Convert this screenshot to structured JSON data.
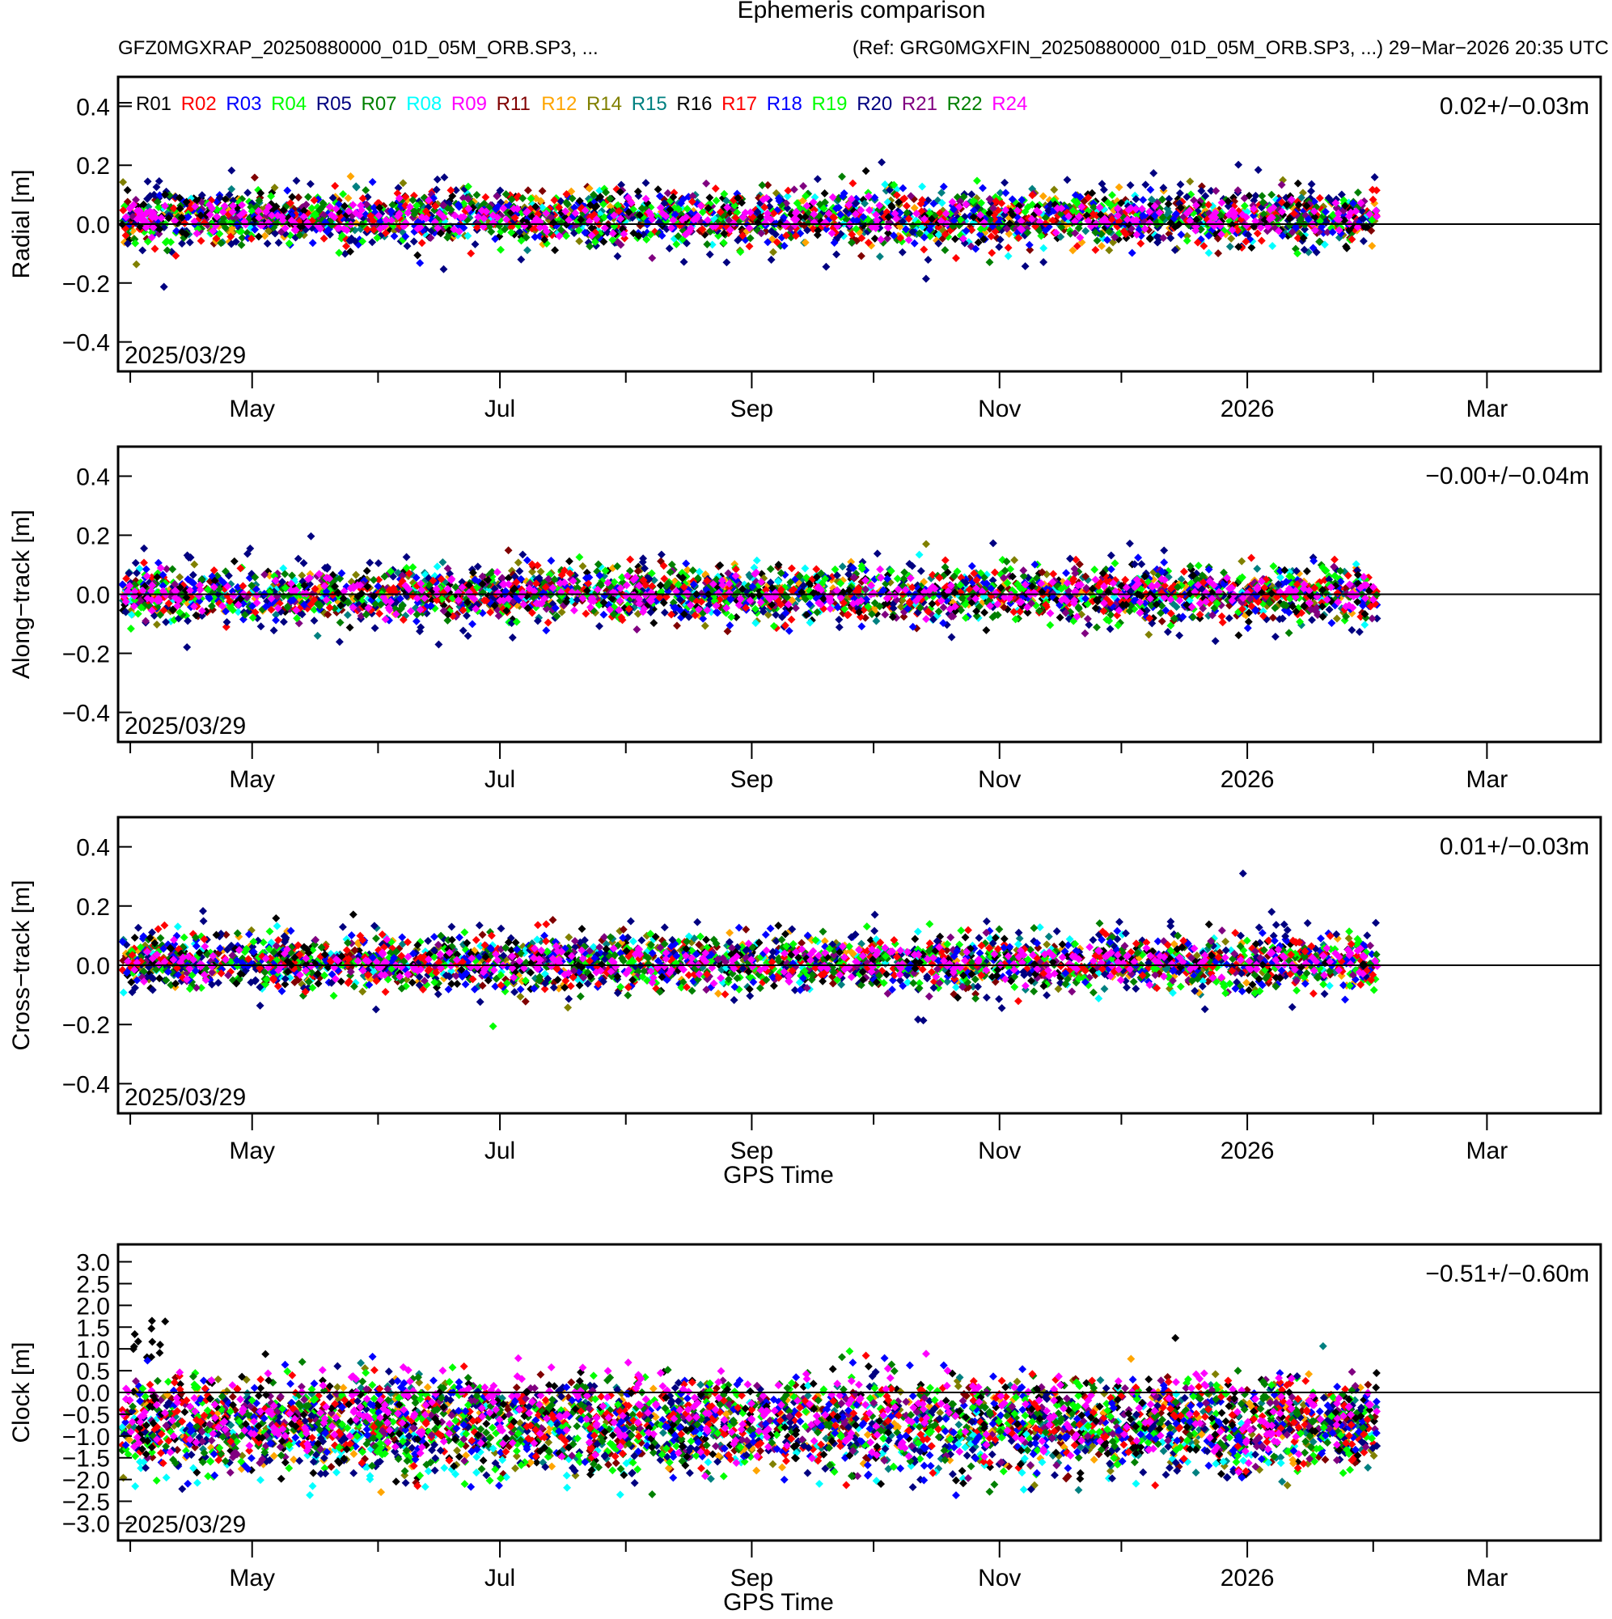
{
  "header": {
    "title": "Ephemeris comparison",
    "subtitle_left": "GFZ0MGXRAP_20250880000_01D_05M_ORB.SP3, ...",
    "subtitle_right": "(Ref: GRG0MGXFIN_20250880000_01D_05M_ORB.SP3, ...) 29−Mar−2026 20:35 UTC"
  },
  "chart_data": [
    {
      "type": "scatter",
      "panel": "radial",
      "ylabel": "Radial [m]",
      "xlabel": "",
      "ylim": [
        -0.5,
        0.5
      ],
      "yticks": [
        -0.4,
        -0.2,
        0.0,
        0.2,
        0.4
      ],
      "ytick_labels": [
        "−0.4",
        "−0.2",
        "0.0",
        "0.2",
        "0.4"
      ],
      "stat": "0.02+/−0.03m",
      "start_label": "2025/03/29",
      "mean": 0.02,
      "std": 0.03
    },
    {
      "type": "scatter",
      "panel": "along-track",
      "ylabel": "Along−track [m]",
      "xlabel": "",
      "ylim": [
        -0.5,
        0.5
      ],
      "yticks": [
        -0.4,
        -0.2,
        0.0,
        0.2,
        0.4
      ],
      "ytick_labels": [
        "−0.4",
        "−0.2",
        "0.0",
        "0.2",
        "0.4"
      ],
      "stat": "−0.00+/−0.04m",
      "start_label": "2025/03/29",
      "mean": 0.0,
      "std": 0.04
    },
    {
      "type": "scatter",
      "panel": "cross-track",
      "ylabel": "Cross−track [m]",
      "xlabel": "GPS Time",
      "ylim": [
        -0.5,
        0.5
      ],
      "yticks": [
        -0.4,
        -0.2,
        0.0,
        0.2,
        0.4
      ],
      "ytick_labels": [
        "−0.4",
        "−0.2",
        "0.0",
        "0.2",
        "0.4"
      ],
      "stat": "0.01+/−0.03m",
      "start_label": "2025/03/29",
      "mean": 0.01,
      "std": 0.03
    },
    {
      "type": "scatter",
      "panel": "clock",
      "ylabel": "Clock [m]",
      "xlabel": "GPS Time",
      "ylim": [
        -3.4,
        3.4
      ],
      "yticks": [
        -3.0,
        -2.5,
        -2.0,
        -1.5,
        -1.0,
        -0.5,
        0.0,
        0.5,
        1.0,
        1.5,
        2.0,
        2.5,
        3.0
      ],
      "ytick_labels": [
        "−3.0",
        "−2.5",
        "−2.0",
        "−1.5",
        "−1.0",
        "−0.5",
        "0.0",
        "0.5",
        "1.0",
        "1.5",
        "2.0",
        "2.5",
        "3.0"
      ],
      "stat": "−0.51+/−0.60m",
      "start_label": "2025/03/29",
      "mean": -0.51,
      "std": 0.6
    }
  ],
  "x_axis": {
    "range_days": [
      0,
      365
    ],
    "data_end_day": 310,
    "month_ticks_days": [
      3,
      33,
      64,
      94,
      125,
      156,
      186,
      217,
      247,
      278,
      309,
      337,
      368
    ],
    "labels": [
      {
        "day": 33,
        "text": "May"
      },
      {
        "day": 94,
        "text": "Jul"
      },
      {
        "day": 156,
        "text": "Sep"
      },
      {
        "day": 217,
        "text": "Nov"
      },
      {
        "day": 278,
        "text": "2026"
      },
      {
        "day": 337,
        "text": "Mar"
      }
    ]
  },
  "legend": [
    {
      "name": "R01",
      "color": "#000000"
    },
    {
      "name": "R02",
      "color": "#ff0000"
    },
    {
      "name": "R03",
      "color": "#0000ff"
    },
    {
      "name": "R04",
      "color": "#00ff00"
    },
    {
      "name": "R05",
      "color": "#000080"
    },
    {
      "name": "R07",
      "color": "#008000"
    },
    {
      "name": "R08",
      "color": "#00ffff"
    },
    {
      "name": "R09",
      "color": "#ff00ff"
    },
    {
      "name": "R11",
      "color": "#800000"
    },
    {
      "name": "R12",
      "color": "#ffa500"
    },
    {
      "name": "R14",
      "color": "#808000"
    },
    {
      "name": "R15",
      "color": "#008080"
    },
    {
      "name": "R16",
      "color": "#000000"
    },
    {
      "name": "R17",
      "color": "#ff0000"
    },
    {
      "name": "R18",
      "color": "#0000ff"
    },
    {
      "name": "R19",
      "color": "#00ff00"
    },
    {
      "name": "R20",
      "color": "#000080"
    },
    {
      "name": "R21",
      "color": "#800080"
    },
    {
      "name": "R22",
      "color": "#008000"
    },
    {
      "name": "R24",
      "color": "#ff00ff"
    }
  ]
}
